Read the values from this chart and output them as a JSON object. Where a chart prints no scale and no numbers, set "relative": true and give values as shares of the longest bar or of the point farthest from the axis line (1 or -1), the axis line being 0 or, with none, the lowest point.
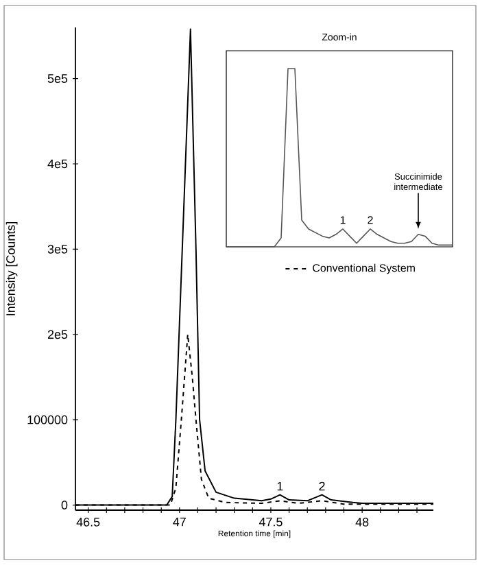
{
  "chart_data": [
    {
      "type": "line",
      "xlabel": "Retention time [min]",
      "ylabel": "Intensity [Counts]",
      "series": [
        {
          "color": "#000000",
          "line_style": "solid",
          "x": [
            46.43,
            46.93,
            46.96,
            46.98,
            47.015,
            47.06,
            47.09,
            47.11,
            47.14,
            47.2,
            47.3,
            47.45,
            47.5,
            47.55,
            47.6,
            47.7,
            47.78,
            47.83,
            47.95,
            48.0,
            48.39
          ],
          "values": [
            0,
            0,
            10000,
            100000,
            300000,
            558000,
            300000,
            100000,
            40000,
            15000,
            8000,
            5000,
            7000,
            12000,
            6000,
            5000,
            12000,
            6000,
            3000,
            2000,
            2000
          ]
        },
        {
          "name": "Conventional System",
          "color": "#000000",
          "line_style": "dashed",
          "x": [
            46.43,
            46.95,
            46.98,
            47.01,
            47.045,
            47.07,
            47.09,
            47.12,
            47.16,
            47.25,
            47.45,
            47.55,
            47.65,
            47.78,
            47.9,
            48.39
          ],
          "values": [
            0,
            0,
            20000,
            100000,
            200000,
            150000,
            100000,
            30000,
            8000,
            3000,
            2000,
            5000,
            2000,
            5000,
            1000,
            1000
          ]
        }
      ],
      "xlim": [
        46.43,
        48.39
      ],
      "ylim": [
        -6000,
        560000
      ],
      "xticks": [
        46.5,
        {
          "value": 46.6,
          "label": null
        },
        {
          "value": 46.7,
          "label": null
        },
        {
          "value": 46.8,
          "label": null
        },
        {
          "value": 46.9,
          "label": null
        },
        47,
        {
          "value": 47.1,
          "label": null
        },
        {
          "value": 47.2,
          "label": null
        },
        {
          "value": 47.3,
          "label": null
        },
        {
          "value": 47.4,
          "label": null
        },
        47.5,
        {
          "value": 47.6,
          "label": null
        },
        {
          "value": 47.7,
          "label": null
        },
        {
          "value": 47.8,
          "label": null
        },
        {
          "value": 47.9,
          "label": null
        },
        48,
        {
          "value": 48.1,
          "label": null
        },
        {
          "value": 48.2,
          "label": null
        },
        {
          "value": 48.3,
          "label": null
        }
      ],
      "yticks": [
        0,
        100000,
        {
          "value": 200000,
          "label": "2e5"
        },
        {
          "value": 300000,
          "label": "3e5"
        },
        {
          "value": 400000,
          "label": "4e5"
        },
        {
          "value": 500000,
          "label": "5e5"
        }
      ],
      "legend": "right",
      "marker": "none",
      "annotations": [
        {
          "text": "1",
          "x": 47.55,
          "y": 12000
        },
        {
          "text": "2",
          "x": 47.78,
          "y": 12000
        }
      ]
    },
    {
      "type": "line",
      "title": "Zoom-in",
      "relative": true,
      "color": "#555555",
      "categories": [
        null,
        null,
        null,
        null,
        null,
        null,
        null,
        null,
        null,
        null,
        null,
        null,
        null,
        null,
        null,
        null,
        null,
        null,
        null,
        null,
        null,
        null,
        null,
        null,
        null,
        null,
        null,
        null,
        null,
        null,
        null,
        null,
        null,
        null
      ],
      "values": [
        0,
        0,
        0,
        0,
        0,
        0,
        0,
        0,
        0.05,
        1,
        1,
        0.15,
        0.1,
        0.08,
        0.06,
        0.05,
        0.07,
        0.1,
        0.06,
        0.02,
        0.06,
        0.1,
        0.07,
        0.05,
        0.03,
        0.02,
        0.02,
        0.03,
        0.07,
        0.06,
        0.02,
        0.01,
        0.01,
        0.01
      ],
      "annotations": [
        "1",
        "2",
        "Succinimide intermediate"
      ]
    }
  ]
}
